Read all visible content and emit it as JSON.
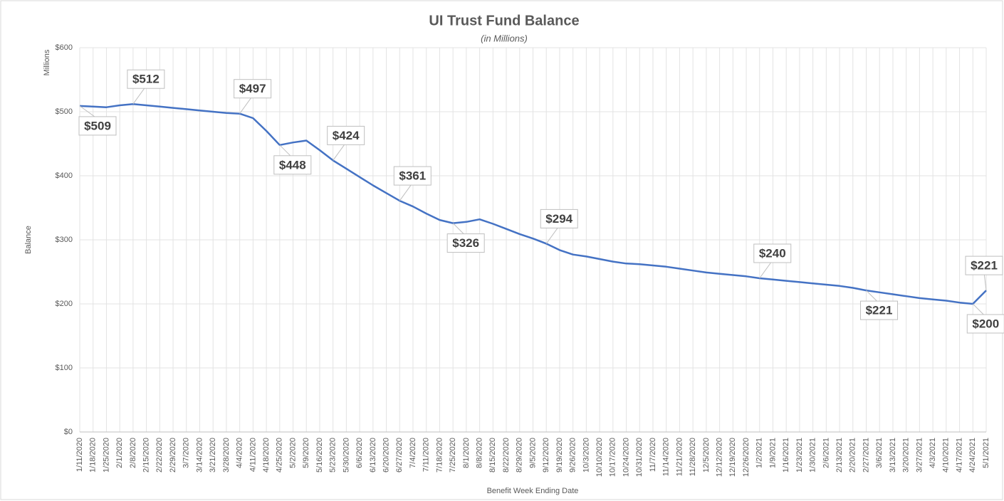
{
  "chart_data": {
    "type": "line",
    "title": "UI Trust Fund Balance",
    "subtitle": "(in Millions)",
    "y_unit_label": "Millions",
    "y_label": "Balance",
    "x_label": "Benefit Week Ending Date",
    "categories": [
      "1/11/2020",
      "1/18/2020",
      "1/25/2020",
      "2/1/2020",
      "2/8/2020",
      "2/15/2020",
      "2/22/2020",
      "2/29/2020",
      "3/7/2020",
      "3/14/2020",
      "3/21/2020",
      "3/28/2020",
      "4/4/2020",
      "4/11/2020",
      "4/18/2020",
      "4/25/2020",
      "5/2/2020",
      "5/9/2020",
      "5/16/2020",
      "5/23/2020",
      "5/30/2020",
      "6/6/2020",
      "6/13/2020",
      "6/20/2020",
      "6/27/2020",
      "7/4/2020",
      "7/11/2020",
      "7/18/2020",
      "7/25/2020",
      "8/1/2020",
      "8/8/2020",
      "8/15/2020",
      "8/22/2020",
      "8/29/2020",
      "9/5/2020",
      "9/12/2020",
      "9/19/2020",
      "9/26/2020",
      "10/3/2020",
      "10/10/2020",
      "10/17/2020",
      "10/24/2020",
      "10/31/2020",
      "11/7/2020",
      "11/14/2020",
      "11/21/2020",
      "11/28/2020",
      "12/5/2020",
      "12/12/2020",
      "12/19/2020",
      "12/26/2020",
      "1/2/2021",
      "1/9/2021",
      "1/16/2021",
      "1/23/2021",
      "1/30/2021",
      "2/6/2021",
      "2/13/2021",
      "2/20/2021",
      "2/27/2021",
      "3/6/2021",
      "3/13/2021",
      "3/20/2021",
      "3/27/2021",
      "4/3/2021",
      "4/10/2021",
      "4/17/2021",
      "4/24/2021",
      "5/1/2021"
    ],
    "series": [
      {
        "name": "Balance",
        "color": "#4472c4",
        "values": [
          509,
          508,
          507,
          510,
          512,
          510,
          508,
          506,
          504,
          502,
          500,
          498,
          497,
          490,
          470,
          448,
          452,
          455,
          440,
          424,
          411,
          398,
          385,
          373,
          361,
          352,
          341,
          331,
          326,
          328,
          332,
          325,
          317,
          309,
          302,
          294,
          284,
          277,
          274,
          270,
          266,
          263,
          262,
          260,
          258,
          255,
          252,
          249,
          247,
          245,
          243,
          240,
          238,
          236,
          234,
          232,
          230,
          228,
          225,
          221,
          218,
          215,
          212,
          209,
          207,
          205,
          202,
          200,
          221
        ],
        "value_labels": [
          "$509",
          null,
          null,
          null,
          "$512",
          null,
          null,
          null,
          null,
          null,
          null,
          null,
          "$497",
          null,
          null,
          "$448",
          null,
          null,
          null,
          "$424",
          null,
          null,
          null,
          null,
          "$361",
          null,
          null,
          null,
          "$326",
          null,
          null,
          null,
          null,
          null,
          null,
          "$294",
          null,
          null,
          null,
          null,
          null,
          null,
          null,
          null,
          null,
          null,
          null,
          null,
          null,
          null,
          null,
          "$240",
          null,
          null,
          null,
          null,
          null,
          null,
          null,
          "$221",
          null,
          null,
          null,
          null,
          null,
          null,
          null,
          "$200",
          "$221"
        ]
      }
    ],
    "ylim": [
      0,
      600
    ],
    "yticks": [
      {
        "value": 0,
        "label": "$0"
      },
      {
        "value": 100,
        "label": "$100"
      },
      {
        "value": 200,
        "label": "$200"
      },
      {
        "value": 300,
        "label": "$300"
      },
      {
        "value": 400,
        "label": "$400"
      },
      {
        "value": 500,
        "label": "$500"
      },
      {
        "value": 600,
        "label": "$600"
      }
    ],
    "grid": true
  }
}
